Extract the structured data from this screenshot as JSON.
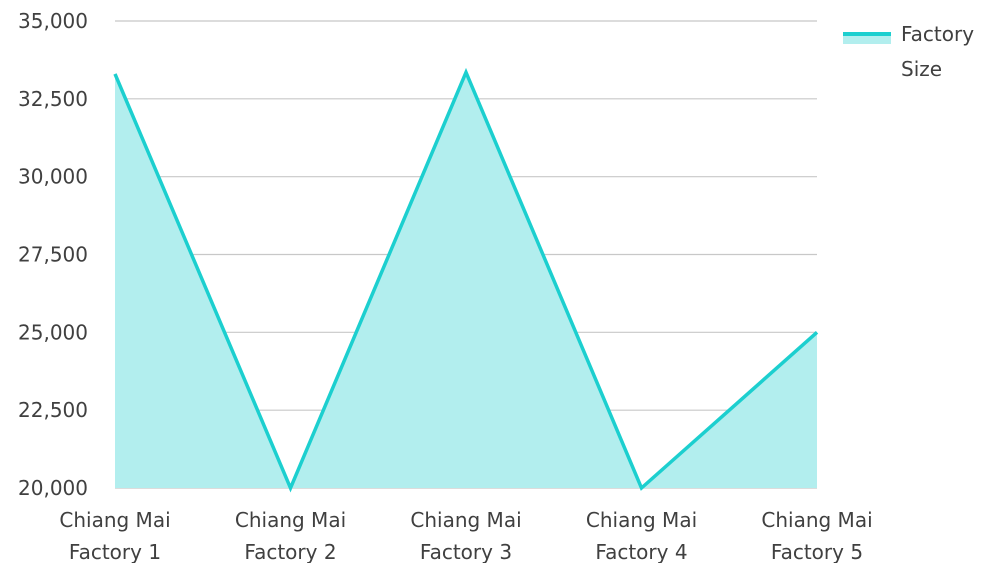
{
  "chart_data": {
    "type": "area",
    "categories": [
      [
        "Chiang Mai",
        "Factory 1"
      ],
      [
        "Chiang Mai",
        "Factory 2"
      ],
      [
        "Chiang Mai",
        "Factory 3"
      ],
      [
        "Chiang Mai",
        "Factory 4"
      ],
      [
        "Chiang Mai",
        "Factory 5"
      ]
    ],
    "series": [
      {
        "name": "Factory Size",
        "values": [
          33300,
          20000,
          33350,
          20000,
          25000
        ]
      }
    ],
    "ylim": [
      20000,
      35000
    ],
    "yticks": [
      "20,000",
      "22,500",
      "25,000",
      "27,500",
      "30,000",
      "32,500",
      "35,000"
    ],
    "ytick_values": [
      20000,
      22500,
      25000,
      27500,
      30000,
      32500,
      35000
    ],
    "grid": true,
    "legend": {
      "position": "top-right",
      "label_lines": [
        "Factory",
        "Size"
      ]
    },
    "colors": {
      "line": "#1ccfcf",
      "fill": "#b2eeee",
      "grid": "#c8c8c8"
    }
  }
}
